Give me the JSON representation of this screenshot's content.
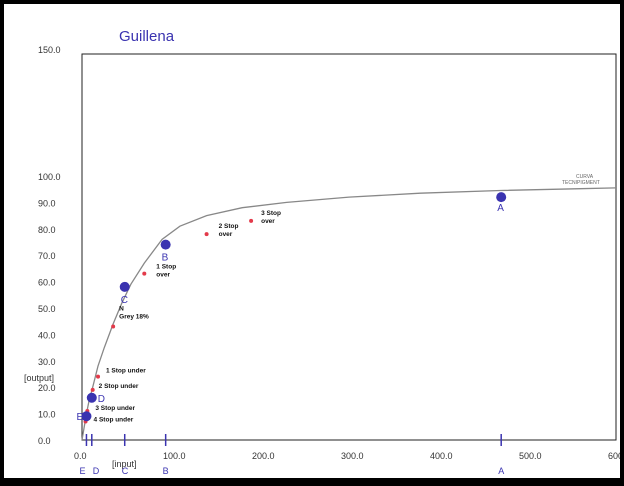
{
  "chart_data": {
    "type": "line",
    "title": "Guillena",
    "xlabel": "[input]",
    "ylabel": "[output]",
    "xlim": [
      0,
      600
    ],
    "ylim": [
      0,
      150
    ],
    "x_ticks": [
      "0.0",
      "100.0",
      "200.0",
      "300.0",
      "400.0",
      "500.0",
      "600.0"
    ],
    "y_ticks": [
      "0.0",
      "10.0",
      "20.0",
      "30.0",
      "40.0",
      "50.0",
      "60.0",
      "70.0",
      "80.0",
      "90.0",
      "100.0",
      "150.0"
    ],
    "curve_label": "CURVA",
    "curve_label_2": "TECNIPIGMENT",
    "curve": {
      "x": [
        0,
        2,
        5,
        8,
        12,
        18,
        25,
        35,
        45,
        55,
        70,
        90,
        110,
        140,
        180,
        230,
        300,
        380,
        470,
        560,
        600
      ],
      "y": [
        0,
        4,
        10,
        15,
        20,
        28,
        35,
        44,
        52,
        59,
        67,
        76,
        81,
        85,
        88,
        90,
        92,
        93.5,
        94.5,
        95.2,
        95.5
      ]
    },
    "stops": [
      {
        "x": 4,
        "y": 7,
        "label": "4 Stop under"
      },
      {
        "x": 6,
        "y": 11,
        "label": "3 Stop under"
      },
      {
        "x": 12,
        "y": 19,
        "label": "2 Stop under"
      },
      {
        "x": 18,
        "y": 24,
        "label": "1 Stop under"
      },
      {
        "x": 35,
        "y": 43,
        "label_line1": "N",
        "label_line2": "Grey 18%"
      },
      {
        "x": 70,
        "y": 63,
        "label_line1": "1 Stop",
        "label_line2": "over"
      },
      {
        "x": 140,
        "y": 78,
        "label_line1": "2 Stop",
        "label_line2": "over"
      },
      {
        "x": 190,
        "y": 83,
        "label_line1": "3 Stop",
        "label_line2": "over"
      }
    ],
    "points": [
      {
        "name": "A",
        "x": 471,
        "y": 92
      },
      {
        "name": "B",
        "x": 94,
        "y": 74
      },
      {
        "name": "C",
        "x": 48,
        "y": 58
      },
      {
        "name": "D",
        "x": 11,
        "y": 16
      },
      {
        "name": "E",
        "x": 5,
        "y": 9
      }
    ],
    "x_markers": [
      "E",
      "D",
      "C",
      "B",
      "A"
    ]
  },
  "colors": {
    "accent": "#3a33b0",
    "curve": "#888888",
    "stop": "#e33a4a",
    "axis": "#222222"
  }
}
